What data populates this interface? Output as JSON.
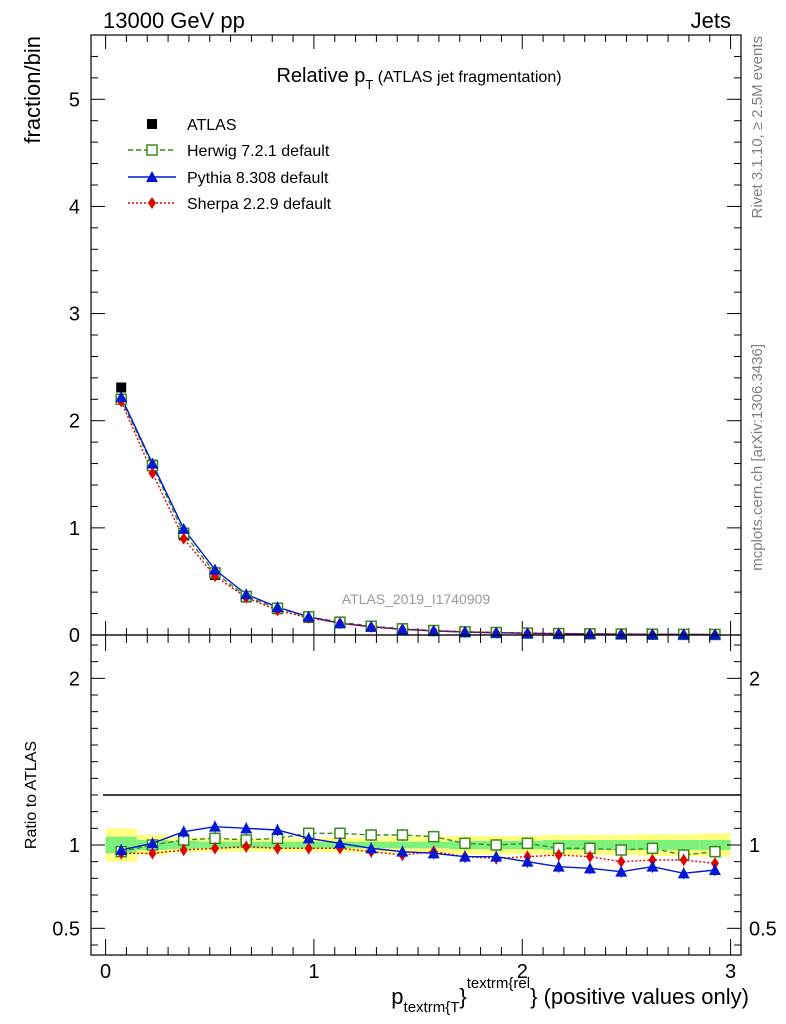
{
  "header": {
    "left": "13000 GeV pp",
    "right": "Jets"
  },
  "side_labels": {
    "rivet": "Rivet 3.1.10, ≥ 2.5M events",
    "mcplots": "mcplots.cern.ch [arXiv:1306.3436]"
  },
  "title": {
    "main": "Relative p",
    "sub": "T",
    "rest": " (ATLAS jet fragmentation)"
  },
  "watermark": "ATLAS_2019_I1740909",
  "colors": {
    "atlas": "#000000",
    "herwig": "#3a8a1e",
    "pythia": "#0018d0",
    "sherpa": "#e00000",
    "band_inner": "#7ef07e",
    "band_outer": "#ffff80"
  },
  "chart_data": [
    {
      "type": "line",
      "ylabel": "fraction/bin",
      "ylim": [
        0,
        5.6
      ],
      "yticks": [
        0,
        1,
        2,
        3,
        4,
        5
      ],
      "xlim": [
        -0.07,
        3.05
      ],
      "x": [
        0.075,
        0.225,
        0.375,
        0.525,
        0.675,
        0.825,
        0.975,
        1.125,
        1.275,
        1.425,
        1.575,
        1.725,
        1.875,
        2.025,
        2.175,
        2.325,
        2.475,
        2.625,
        2.775,
        2.925
      ],
      "series": [
        {
          "name": "ATLAS",
          "marker": "square",
          "values": [
            2.31,
            1.59,
            0.93,
            0.56,
            0.35,
            0.24,
            0.16,
            0.11,
            0.078,
            0.055,
            0.04,
            0.03,
            0.023,
            0.018,
            0.014,
            0.011,
            0.009,
            0.007,
            0.006,
            0.005
          ]
        },
        {
          "name": "Herwig 7.2.1 default",
          "marker": "open-square",
          "values": [
            2.2,
            1.58,
            0.95,
            0.58,
            0.36,
            0.25,
            0.17,
            0.12,
            0.082,
            0.058,
            0.042,
            0.03,
            0.023,
            0.018,
            0.014,
            0.011,
            0.009,
            0.007,
            0.006,
            0.005
          ]
        },
        {
          "name": "Pythia 8.308 default",
          "marker": "triangle",
          "values": [
            2.22,
            1.6,
            0.99,
            0.61,
            0.38,
            0.26,
            0.17,
            0.11,
            0.077,
            0.053,
            0.038,
            0.028,
            0.021,
            0.016,
            0.012,
            0.01,
            0.008,
            0.006,
            0.005,
            0.004
          ]
        },
        {
          "name": "Sherpa 2.2.9 default",
          "marker": "diamond",
          "values": [
            2.18,
            1.51,
            0.9,
            0.55,
            0.35,
            0.23,
            0.16,
            0.11,
            0.075,
            0.052,
            0.039,
            0.028,
            0.021,
            0.017,
            0.013,
            0.01,
            0.008,
            0.006,
            0.005,
            0.004
          ]
        }
      ]
    },
    {
      "type": "line",
      "ylabel": "Ratio to ATLAS",
      "xlabel_main": "p",
      "xlabel_sub": "textrm{T",
      "xlabel_sup": "textrm{rel",
      "xlabel_close": "}",
      "xlabel_rest": "} (positive values only)",
      "ylim": [
        0.34,
        2.26
      ],
      "yticks": [
        0.5,
        1,
        2
      ],
      "xticks": [
        0,
        1,
        2,
        3
      ],
      "xlim": [
        -0.07,
        3.05
      ],
      "x": [
        0.075,
        0.225,
        0.375,
        0.525,
        0.675,
        0.825,
        0.975,
        1.125,
        1.275,
        1.425,
        1.575,
        1.725,
        1.875,
        2.025,
        2.175,
        2.325,
        2.475,
        2.625,
        2.775,
        2.925
      ],
      "band_inner": [
        0.05,
        0.03,
        0.025,
        0.02,
        0.02,
        0.02,
        0.02,
        0.02,
        0.02,
        0.02,
        0.02,
        0.025,
        0.025,
        0.025,
        0.03,
        0.03,
        0.03,
        0.03,
        0.03,
        0.03
      ],
      "band_outer": [
        0.1,
        0.06,
        0.045,
        0.04,
        0.04,
        0.04,
        0.04,
        0.045,
        0.045,
        0.05,
        0.05,
        0.055,
        0.055,
        0.055,
        0.06,
        0.06,
        0.06,
        0.065,
        0.065,
        0.07
      ],
      "series": [
        {
          "name": "Herwig 7.2.1 default",
          "values": [
            0.96,
            1.0,
            1.03,
            1.04,
            1.03,
            1.04,
            1.07,
            1.07,
            1.06,
            1.06,
            1.05,
            1.01,
            1.0,
            1.01,
            0.98,
            0.98,
            0.97,
            0.98,
            0.94,
            0.96
          ]
        },
        {
          "name": "Pythia 8.308 default",
          "values": [
            0.97,
            1.01,
            1.08,
            1.11,
            1.1,
            1.09,
            1.04,
            1.01,
            0.98,
            0.96,
            0.95,
            0.93,
            0.93,
            0.9,
            0.87,
            0.86,
            0.84,
            0.87,
            0.83,
            0.85
          ]
        },
        {
          "name": "Sherpa 2.2.9 default",
          "values": [
            0.95,
            0.95,
            0.97,
            0.98,
            0.99,
            0.98,
            0.98,
            0.98,
            0.96,
            0.94,
            0.96,
            0.93,
            0.92,
            0.93,
            0.94,
            0.93,
            0.9,
            0.91,
            0.91,
            0.89
          ]
        }
      ]
    }
  ]
}
